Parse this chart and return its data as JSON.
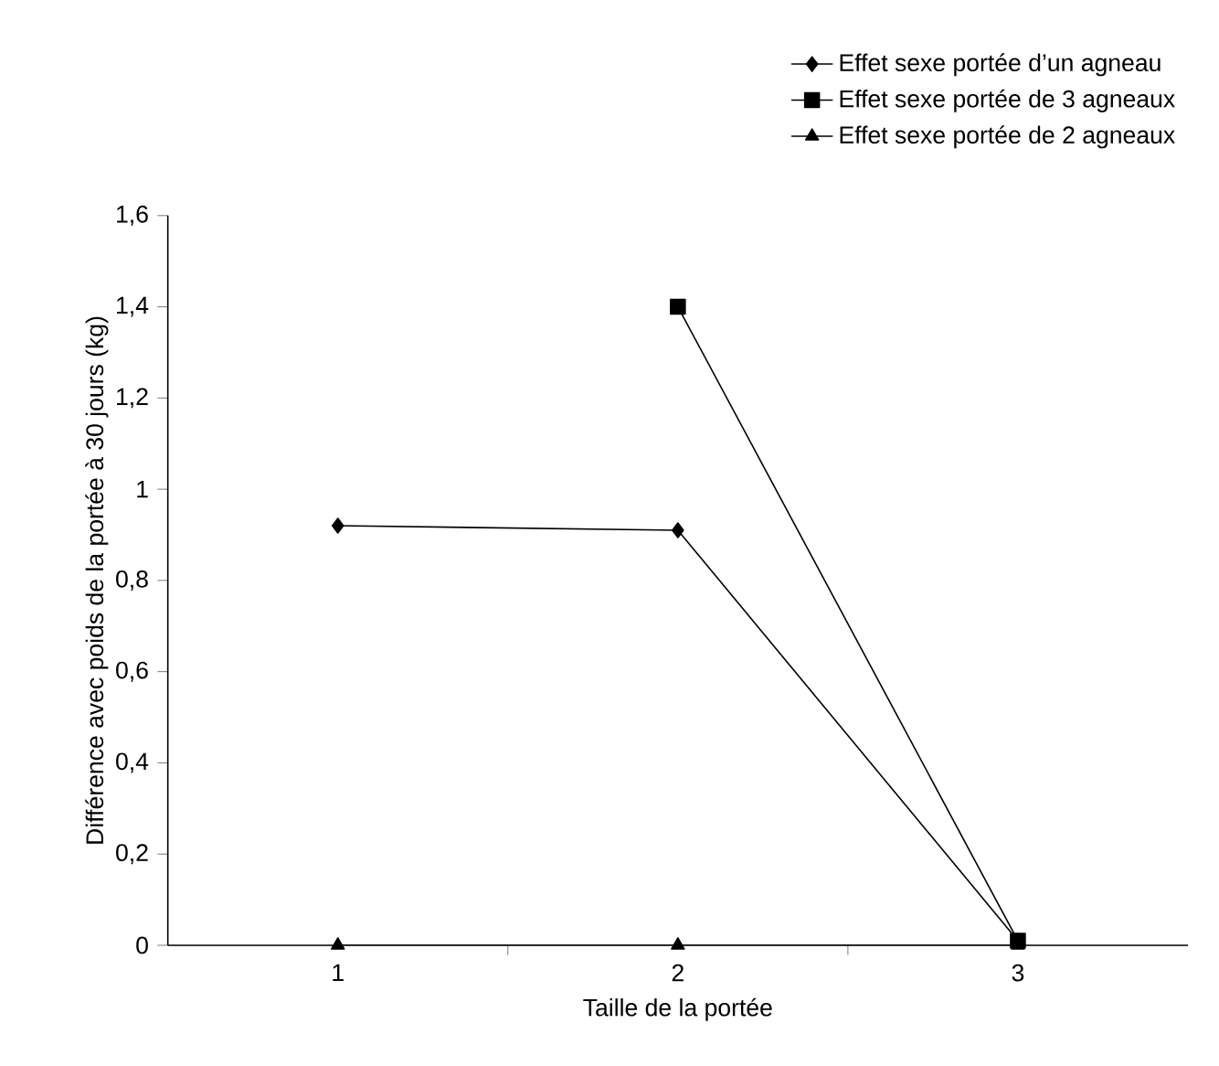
{
  "chart_data": {
    "type": "line",
    "xlabel": "Taille de la portée",
    "ylabel": "Différence avec poids de la portée à 30 jours (kg)",
    "categories": [
      "1",
      "2",
      "3"
    ],
    "series": [
      {
        "name": "Effet sexe portée d’un agneau",
        "color": "#000000",
        "marker": "diamond",
        "values": [
          0.92,
          0.91,
          0.01
        ]
      },
      {
        "name": "Effet sexe portée de 3 agneaux",
        "color": "#000000",
        "marker": "square",
        "values": [
          null,
          1.4,
          0.01
        ]
      },
      {
        "name": "Effet sexe portée de 2 agneaux",
        "color": "#000000",
        "marker": "triangle",
        "values": [
          0,
          0,
          0
        ]
      }
    ],
    "ylim": [
      0,
      1.6
    ],
    "yticks": [
      0,
      {
        "value": 0.2,
        "label": "0,2"
      },
      {
        "value": 0.4,
        "label": "0,4"
      },
      {
        "value": 0.6,
        "label": "0,6"
      },
      {
        "value": 0.8,
        "label": "0,8"
      },
      1,
      {
        "value": 1.2,
        "label": "1,2"
      },
      {
        "value": 1.4,
        "label": "1,4"
      },
      {
        "value": 1.6,
        "label": "1,6"
      }
    ],
    "grid": false,
    "legend": "top right",
    "line_style": "solid"
  }
}
